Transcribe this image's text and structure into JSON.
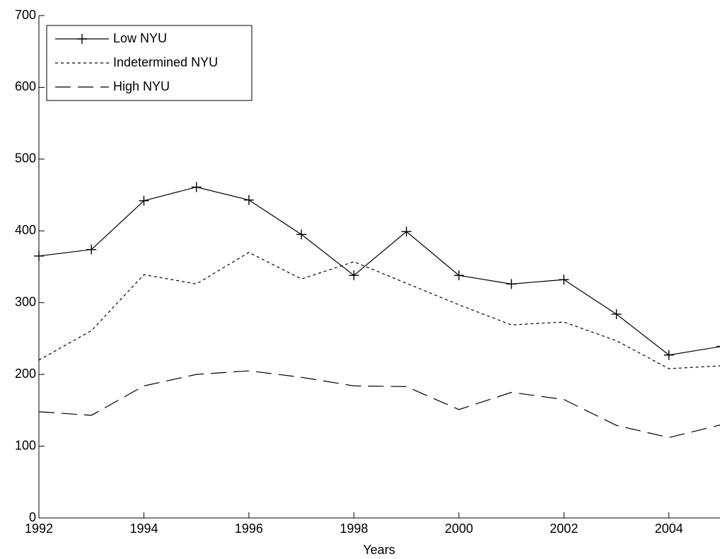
{
  "chart_data": {
    "type": "line",
    "x_label": "Years",
    "x": [
      1992,
      1993,
      1994,
      1995,
      1996,
      1997,
      1998,
      1999,
      2000,
      2001,
      2002,
      2003,
      2004,
      2005
    ],
    "series": [
      {
        "name": "Low NYU",
        "color": "#000000",
        "linestyle": "solid",
        "marker": "+",
        "values": [
          365,
          374,
          442,
          461,
          443,
          395,
          338,
          399,
          338,
          326,
          332,
          284,
          227,
          239
        ]
      },
      {
        "name": "Indetermined NYU",
        "color": "#000000",
        "linestyle": "dotted",
        "marker": "none",
        "values": [
          220,
          261,
          339,
          326,
          370,
          333,
          357,
          327,
          297,
          269,
          273,
          247,
          208,
          212
        ]
      },
      {
        "name": "High NYU",
        "color": "#000000",
        "linestyle": "dashed",
        "marker": "none",
        "values": [
          148,
          143,
          184,
          200,
          205,
          196,
          184,
          183,
          151,
          175,
          165,
          129,
          112,
          130
        ]
      }
    ],
    "xlim": [
      1992,
      2005
    ],
    "xticks": [
      1992,
      1994,
      1996,
      1998,
      2000,
      2002,
      2004
    ],
    "ylim": [
      0,
      700
    ],
    "yticks": [
      0,
      100,
      200,
      300,
      400,
      500,
      600,
      700
    ],
    "grid": false,
    "legend": "upper left"
  }
}
